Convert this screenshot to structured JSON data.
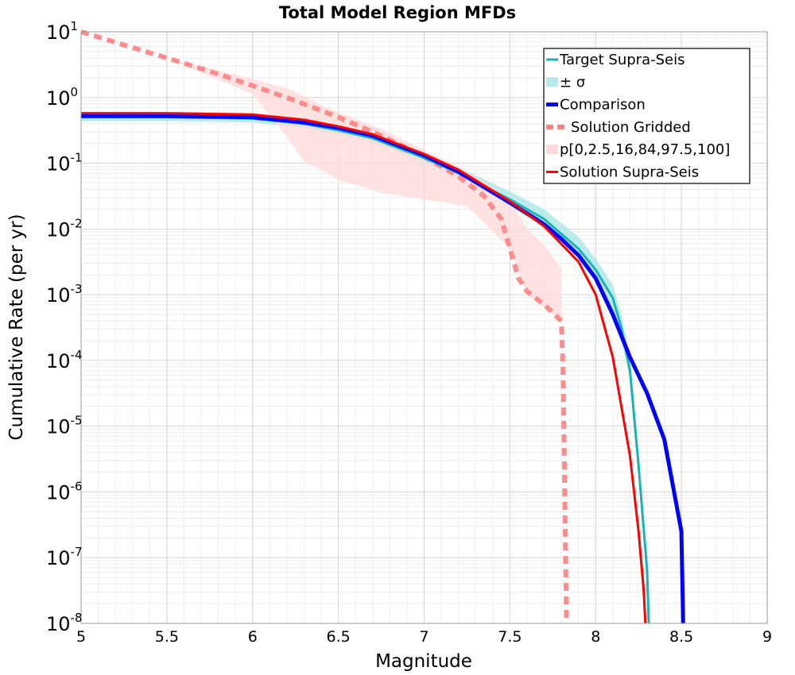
{
  "chart_data": {
    "type": "line",
    "title": "Total Model Region MFDs",
    "xlabel": "Magnitude",
    "ylabel": "Cumulative Rate (per yr)",
    "xlim": [
      5,
      9
    ],
    "ylim_log10": [
      -8,
      1
    ],
    "y_scale": "log",
    "grid": true,
    "legend_position": "top-right",
    "x_ticks": [
      "5",
      "5.5",
      "6",
      "6.5",
      "7",
      "7.5",
      "8",
      "8.5",
      "9"
    ],
    "y_ticks": [
      {
        "base": "10",
        "exp": "1"
      },
      {
        "base": "10",
        "exp": "0"
      },
      {
        "base": "10",
        "exp": "-1"
      },
      {
        "base": "10",
        "exp": "-2"
      },
      {
        "base": "10",
        "exp": "-3"
      },
      {
        "base": "10",
        "exp": "-4"
      },
      {
        "base": "10",
        "exp": "-5"
      },
      {
        "base": "10",
        "exp": "-6"
      },
      {
        "base": "10",
        "exp": "-7"
      },
      {
        "base": "10",
        "exp": "-8"
      }
    ],
    "legend": [
      {
        "label": "Target Supra-Seis",
        "color": "#1ab3b3",
        "style": "line"
      },
      {
        "label": "± σ",
        "color": "#b6e9ea",
        "style": "band"
      },
      {
        "label": "Comparison",
        "color": "#0000ff",
        "style": "thick-line"
      },
      {
        "label": "Solution Gridded",
        "color": "#ff7f7f",
        "style": "dashed"
      },
      {
        "label": "p[0,2.5,16,84,97.5,100]",
        "color": "#ffd9d9",
        "style": "band"
      },
      {
        "label": "Solution Supra-Seis",
        "color": "#ff0000",
        "style": "line"
      }
    ],
    "series": [
      {
        "name": "Target Supra-Seis",
        "color": "#1ab3b3",
        "x": [
          5.0,
          5.5,
          6.0,
          6.3,
          6.5,
          6.7,
          7.0,
          7.2,
          7.5,
          7.7,
          7.9,
          8.0,
          8.1,
          8.15,
          8.2,
          8.25,
          8.3,
          8.31
        ],
        "log10_y": [
          -0.3,
          -0.3,
          -0.32,
          -0.4,
          -0.5,
          -0.62,
          -0.92,
          -1.15,
          -1.55,
          -1.85,
          -2.3,
          -2.62,
          -3.05,
          -3.5,
          -4.15,
          -5.6,
          -7.2,
          -8.0
        ]
      },
      {
        "name": "± σ",
        "color": "#b6e9ea",
        "x": [
          5.0,
          5.5,
          6.0,
          6.3,
          6.5,
          6.7,
          7.0,
          7.2,
          7.5,
          7.7,
          7.9,
          8.0,
          8.1,
          8.15,
          8.2
        ],
        "log10_y_low": [
          -0.36,
          -0.36,
          -0.38,
          -0.46,
          -0.56,
          -0.68,
          -0.98,
          -1.22,
          -1.65,
          -1.98,
          -2.45,
          -2.8,
          -3.3,
          -3.7,
          -4.3
        ],
        "log10_y_high": [
          -0.24,
          -0.24,
          -0.26,
          -0.34,
          -0.44,
          -0.56,
          -0.84,
          -1.06,
          -1.43,
          -1.7,
          -2.12,
          -2.45,
          -2.85,
          -3.3,
          -3.95
        ]
      },
      {
        "name": "Comparison",
        "color": "#0000ff",
        "x": [
          5.0,
          5.5,
          6.0,
          6.3,
          6.5,
          6.7,
          7.0,
          7.2,
          7.5,
          7.7,
          7.8,
          7.9,
          8.0,
          8.1,
          8.2,
          8.3,
          8.4,
          8.5,
          8.51
        ],
        "log10_y": [
          -0.28,
          -0.28,
          -0.3,
          -0.38,
          -0.46,
          -0.58,
          -0.88,
          -1.13,
          -1.6,
          -1.93,
          -2.15,
          -2.4,
          -2.75,
          -3.3,
          -3.95,
          -4.5,
          -5.2,
          -6.6,
          -8.0
        ]
      },
      {
        "name": "Solution Gridded",
        "color": "#ff7f7f",
        "x": [
          5.0,
          5.25,
          5.5,
          5.75,
          6.0,
          6.25,
          6.5,
          6.75,
          7.0,
          7.2,
          7.35,
          7.45,
          7.5,
          7.55,
          7.6,
          7.7,
          7.8,
          7.81,
          7.83
        ],
        "log10_y": [
          1.0,
          0.8,
          0.6,
          0.4,
          0.18,
          -0.05,
          -0.3,
          -0.58,
          -0.9,
          -1.2,
          -1.5,
          -1.85,
          -2.3,
          -2.75,
          -2.95,
          -3.15,
          -3.4,
          -4.2,
          -8.0
        ]
      },
      {
        "name": "p[0,2.5,16,84,97.5,100]",
        "color": "#ffd9d9",
        "x": [
          5.0,
          5.5,
          6.0,
          6.2,
          6.3,
          6.4,
          6.5,
          6.75,
          7.0,
          7.25,
          7.5,
          7.6,
          7.7,
          7.8
        ],
        "log10_y_low": [
          1.0,
          0.6,
          0.05,
          -0.6,
          -0.97,
          -1.1,
          -1.25,
          -1.45,
          -1.55,
          -1.65,
          -2.3,
          -3.0,
          -3.2,
          -3.4
        ],
        "log10_y_high": [
          1.0,
          0.6,
          0.28,
          0.14,
          0.02,
          -0.12,
          -0.22,
          -0.48,
          -0.8,
          -1.12,
          -1.55,
          -2.0,
          -2.25,
          -2.6
        ]
      },
      {
        "name": "Solution Supra-Seis",
        "color": "#ff0000",
        "x": [
          5.0,
          5.5,
          6.0,
          6.3,
          6.5,
          6.7,
          7.0,
          7.2,
          7.5,
          7.7,
          7.9,
          8.0,
          8.1,
          8.2,
          8.25,
          8.28,
          8.29
        ],
        "log10_y": [
          -0.24,
          -0.24,
          -0.26,
          -0.34,
          -0.44,
          -0.56,
          -0.86,
          -1.1,
          -1.58,
          -1.96,
          -2.5,
          -3.0,
          -3.95,
          -5.45,
          -6.6,
          -7.5,
          -8.0
        ]
      }
    ]
  }
}
